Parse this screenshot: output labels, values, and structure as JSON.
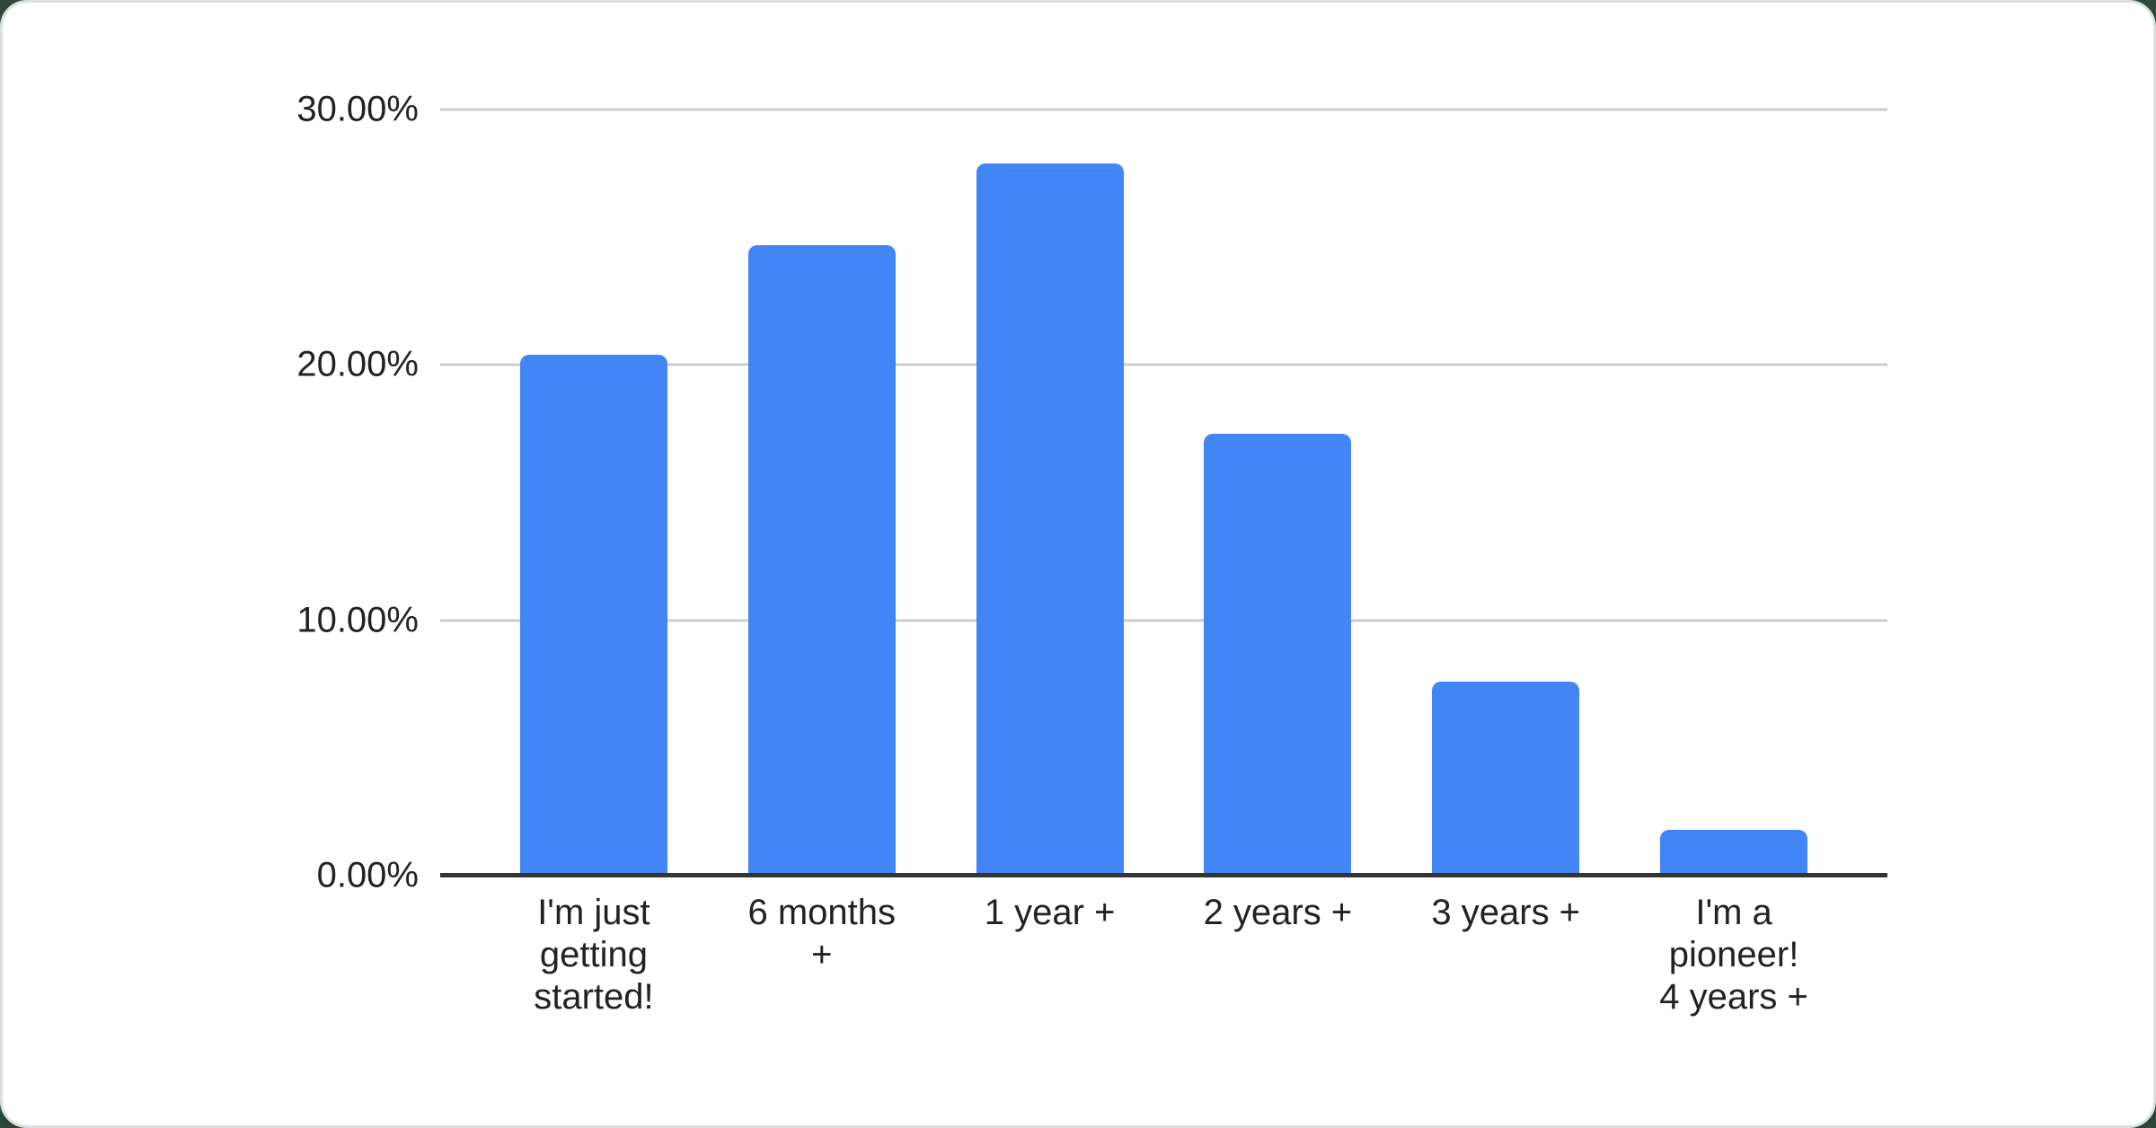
{
  "page": {
    "background_color": "#2e4a3a",
    "card_color": "#ffffff",
    "card_edge_color": "#dadfe2"
  },
  "chart_data": {
    "type": "bar",
    "title": "",
    "xlabel": "",
    "ylabel": "",
    "categories": [
      "I'm just\ngetting\nstarted!",
      "6 months\n+",
      "1 year +",
      "2 years +",
      "3 years +",
      "I'm a\npioneer!\n4 years +"
    ],
    "values": [
      20.4,
      24.7,
      27.9,
      17.3,
      7.6,
      1.8
    ],
    "unit": "%",
    "ylim": [
      0,
      30
    ],
    "y_ticks": [
      {
        "value": 30,
        "label": "30.00%"
      },
      {
        "value": 20,
        "label": "20.00%"
      },
      {
        "value": 10,
        "label": "10.00%"
      },
      {
        "value": 0,
        "label": "0.00%"
      }
    ],
    "grid": true,
    "legend_position": "none",
    "bar_color": "#4285f4",
    "gridline_color": "#cccccc",
    "axis_line_color": "#333333",
    "label_color": "#222222"
  }
}
